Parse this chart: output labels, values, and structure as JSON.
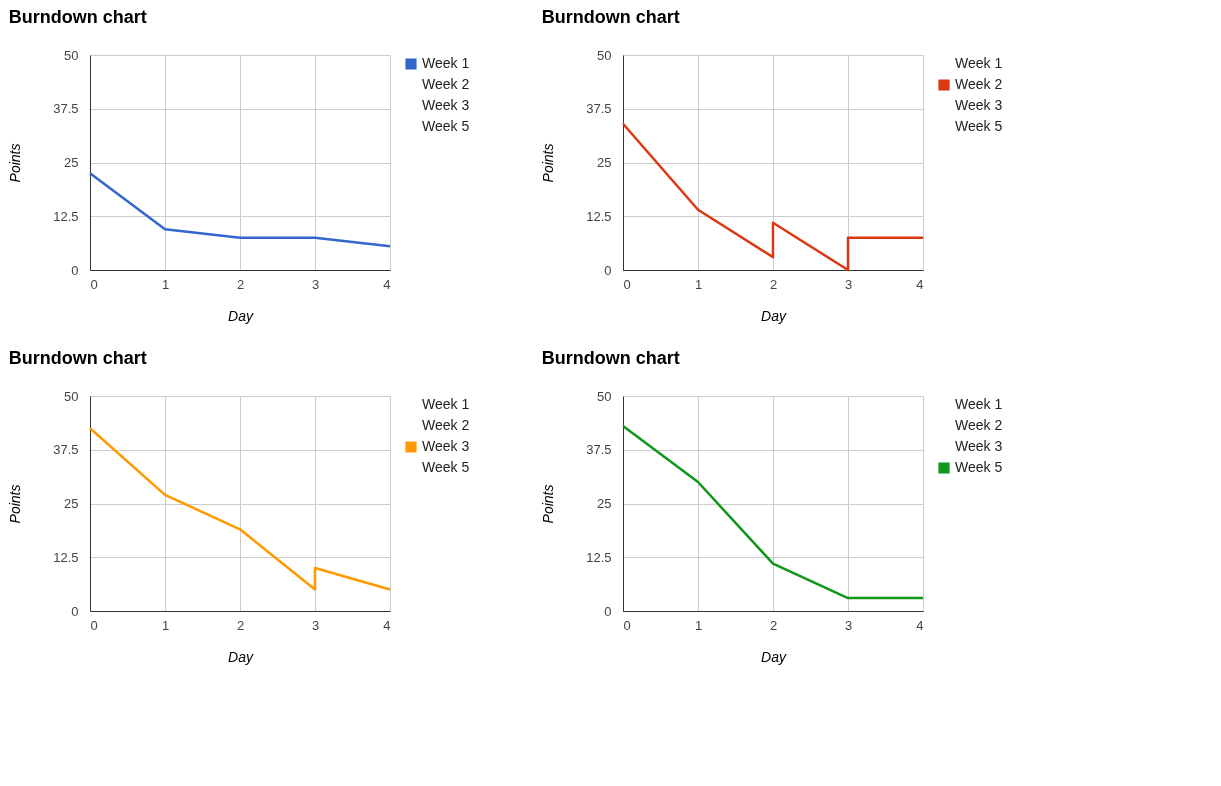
{
  "chart_data": [
    {
      "type": "line",
      "title": "Burndown chart",
      "xlabel": "Day",
      "ylabel": "Points",
      "xlim": [
        0,
        4
      ],
      "xticks": [
        0,
        1,
        2,
        3,
        4
      ],
      "ylim": [
        0,
        50
      ],
      "yticks": [
        0,
        12.5,
        25,
        37.5,
        50
      ],
      "grid": true,
      "legend": "top right",
      "series": [
        {
          "name": "Week 1",
          "color": "#3366cc",
          "x": [
            0,
            1,
            2,
            3,
            4
          ],
          "values": [
            22.5,
            9.5,
            7.5,
            7.5,
            5.5
          ]
        },
        {
          "name": "Week 2"
        },
        {
          "name": "Week 3"
        },
        {
          "name": "Week 5"
        }
      ]
    },
    {
      "type": "line",
      "title": "Burndown chart",
      "xlabel": "Day",
      "ylabel": "Points",
      "xlim": [
        0,
        4
      ],
      "xticks": [
        0,
        1,
        2,
        3,
        4
      ],
      "ylim": [
        0,
        50
      ],
      "yticks": [
        0,
        12.5,
        25,
        37.5,
        50
      ],
      "grid": true,
      "legend": "top right",
      "series": [
        {
          "name": "Week 1"
        },
        {
          "name": "Week 2",
          "color": "#dc3912",
          "x": [
            0,
            1,
            2,
            2,
            3,
            3,
            4
          ],
          "values": [
            34,
            14,
            3,
            11,
            0,
            7.5,
            7.5
          ]
        },
        {
          "name": "Week 3"
        },
        {
          "name": "Week 5"
        }
      ]
    },
    {
      "type": "line",
      "title": "Burndown chart",
      "xlabel": "Day",
      "ylabel": "Points",
      "xlim": [
        0,
        4
      ],
      "xticks": [
        0,
        1,
        2,
        3,
        4
      ],
      "ylim": [
        0,
        50
      ],
      "yticks": [
        0,
        12.5,
        25,
        37.5,
        50
      ],
      "grid": true,
      "legend": "top right",
      "series": [
        {
          "name": "Week 1"
        },
        {
          "name": "Week 2"
        },
        {
          "name": "Week 3",
          "color": "#ff9900",
          "x": [
            0,
            1,
            2,
            3,
            3,
            4
          ],
          "values": [
            42.5,
            27,
            19,
            5,
            10,
            5
          ]
        },
        {
          "name": "Week 5"
        }
      ]
    },
    {
      "type": "line",
      "title": "Burndown chart",
      "xlabel": "Day",
      "ylabel": "Points",
      "xlim": [
        0,
        4
      ],
      "xticks": [
        0,
        1,
        2,
        3,
        4
      ],
      "ylim": [
        0,
        50
      ],
      "yticks": [
        0,
        12.5,
        25,
        37.5,
        50
      ],
      "grid": true,
      "legend": "top right",
      "series": [
        {
          "name": "Week 1"
        },
        {
          "name": "Week 2"
        },
        {
          "name": "Week 3"
        },
        {
          "name": "Week 5",
          "color": "#109618",
          "x": [
            0,
            1,
            2,
            3,
            4
          ],
          "values": [
            43,
            30,
            11,
            3,
            3
          ]
        }
      ]
    }
  ]
}
